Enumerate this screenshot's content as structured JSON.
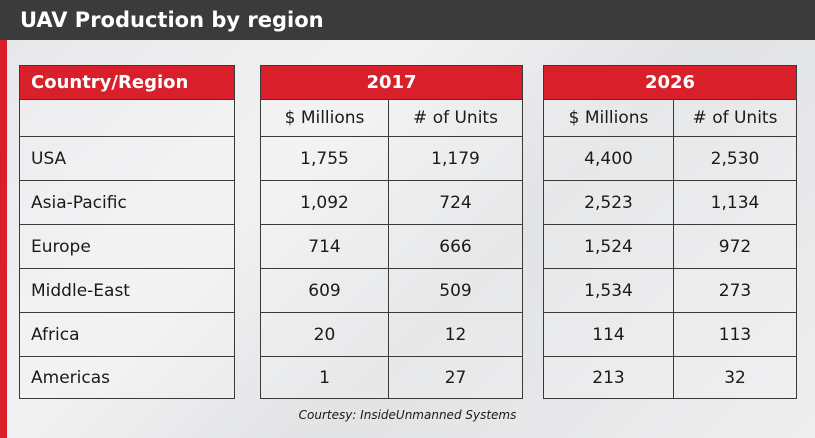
{
  "header": {
    "title": "UAV Production by region"
  },
  "footer": {
    "credit": "Courtesy: InsideUnmanned Systems"
  },
  "colors": {
    "accent_red": "#d81f2a",
    "header_bar": "#3b3b3b"
  },
  "chart_data": {
    "type": "table",
    "title": "UAV Production by region",
    "row_header_label": "Country/Region",
    "groups": [
      {
        "year": "2017",
        "columns": [
          "$ Millions",
          "# of Units"
        ]
      },
      {
        "year": "2026",
        "columns": [
          "$ Millions",
          "# of Units"
        ]
      }
    ],
    "rows": [
      {
        "region": "USA",
        "v2017_millions": "1,755",
        "v2017_units": "1,179",
        "v2026_millions": "4,400",
        "v2026_units": "2,530"
      },
      {
        "region": "Asia-Pacific",
        "v2017_millions": "1,092",
        "v2017_units": "724",
        "v2026_millions": "2,523",
        "v2026_units": "1,134"
      },
      {
        "region": "Europe",
        "v2017_millions": "714",
        "v2017_units": "666",
        "v2026_millions": "1,524",
        "v2026_units": "972"
      },
      {
        "region": "Middle-East",
        "v2017_millions": "609",
        "v2017_units": "509",
        "v2026_millions": "1,534",
        "v2026_units": "273"
      },
      {
        "region": "Africa",
        "v2017_millions": "20",
        "v2017_units": "12",
        "v2026_millions": "114",
        "v2026_units": "113"
      },
      {
        "region": "Americas",
        "v2017_millions": "1",
        "v2017_units": "27",
        "v2026_millions": "213",
        "v2026_units": "32"
      }
    ],
    "source": "Courtesy: InsideUnmanned Systems"
  }
}
